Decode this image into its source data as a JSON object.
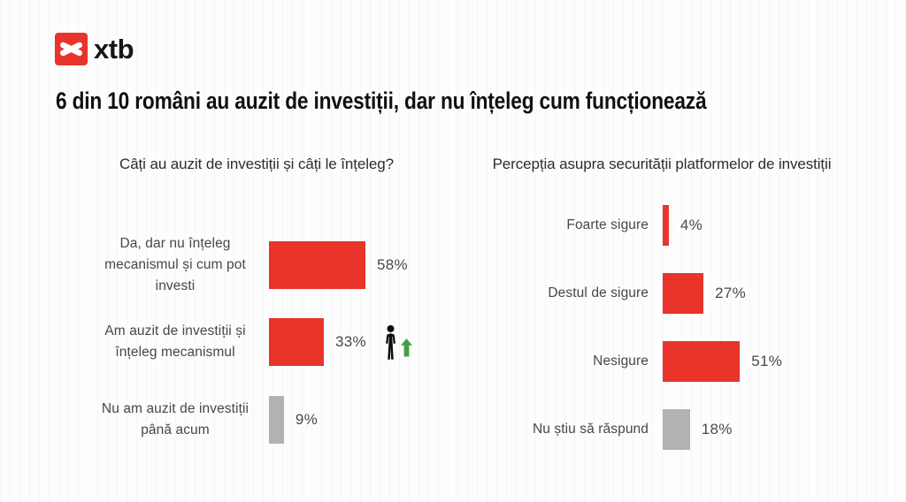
{
  "logo": {
    "brand": "xtb",
    "symbol": "x-mark"
  },
  "header": {
    "title": "6 din 10 români au auzit de investiții, dar nu înțeleg cum funcționează"
  },
  "colors": {
    "red": "#e8342b",
    "gray": "#b2b2b2",
    "green": "#43a047"
  },
  "chart_data": [
    {
      "type": "bar",
      "orientation": "horizontal",
      "title": "Câți au auzit de investiții și câți le înțeleg?",
      "categories": [
        "Da, dar nu înțeleg mecanismul și cum pot investi",
        "Am auzit de investiții și înțeleg mecanismul",
        "Nu am auzit de investiții până acum"
      ],
      "values": [
        58,
        33,
        9
      ],
      "value_labels": [
        "58%",
        "33%",
        "9%"
      ],
      "bar_colors": [
        "#e8342b",
        "#e8342b",
        "#b2b2b2"
      ],
      "unit": "%",
      "xlim": [
        0,
        100
      ],
      "grid": false,
      "legend": false,
      "annotations": [
        {
          "row_index": 1,
          "icons": [
            "person-icon",
            "green-up-arrow-icon"
          ]
        }
      ]
    },
    {
      "type": "bar",
      "orientation": "horizontal",
      "title": "Percepția asupra securității platformelor de investiții",
      "categories": [
        "Foarte sigure",
        "Destul de sigure",
        "Nesigure",
        "Nu știu să răspund"
      ],
      "values": [
        4,
        27,
        51,
        18
      ],
      "value_labels": [
        "4%",
        "27%",
        "51%",
        "18%"
      ],
      "bar_colors": [
        "#e8342b",
        "#e8342b",
        "#e8342b",
        "#b2b2b2"
      ],
      "unit": "%",
      "xlim": [
        0,
        100
      ],
      "grid": false,
      "legend": false
    }
  ]
}
